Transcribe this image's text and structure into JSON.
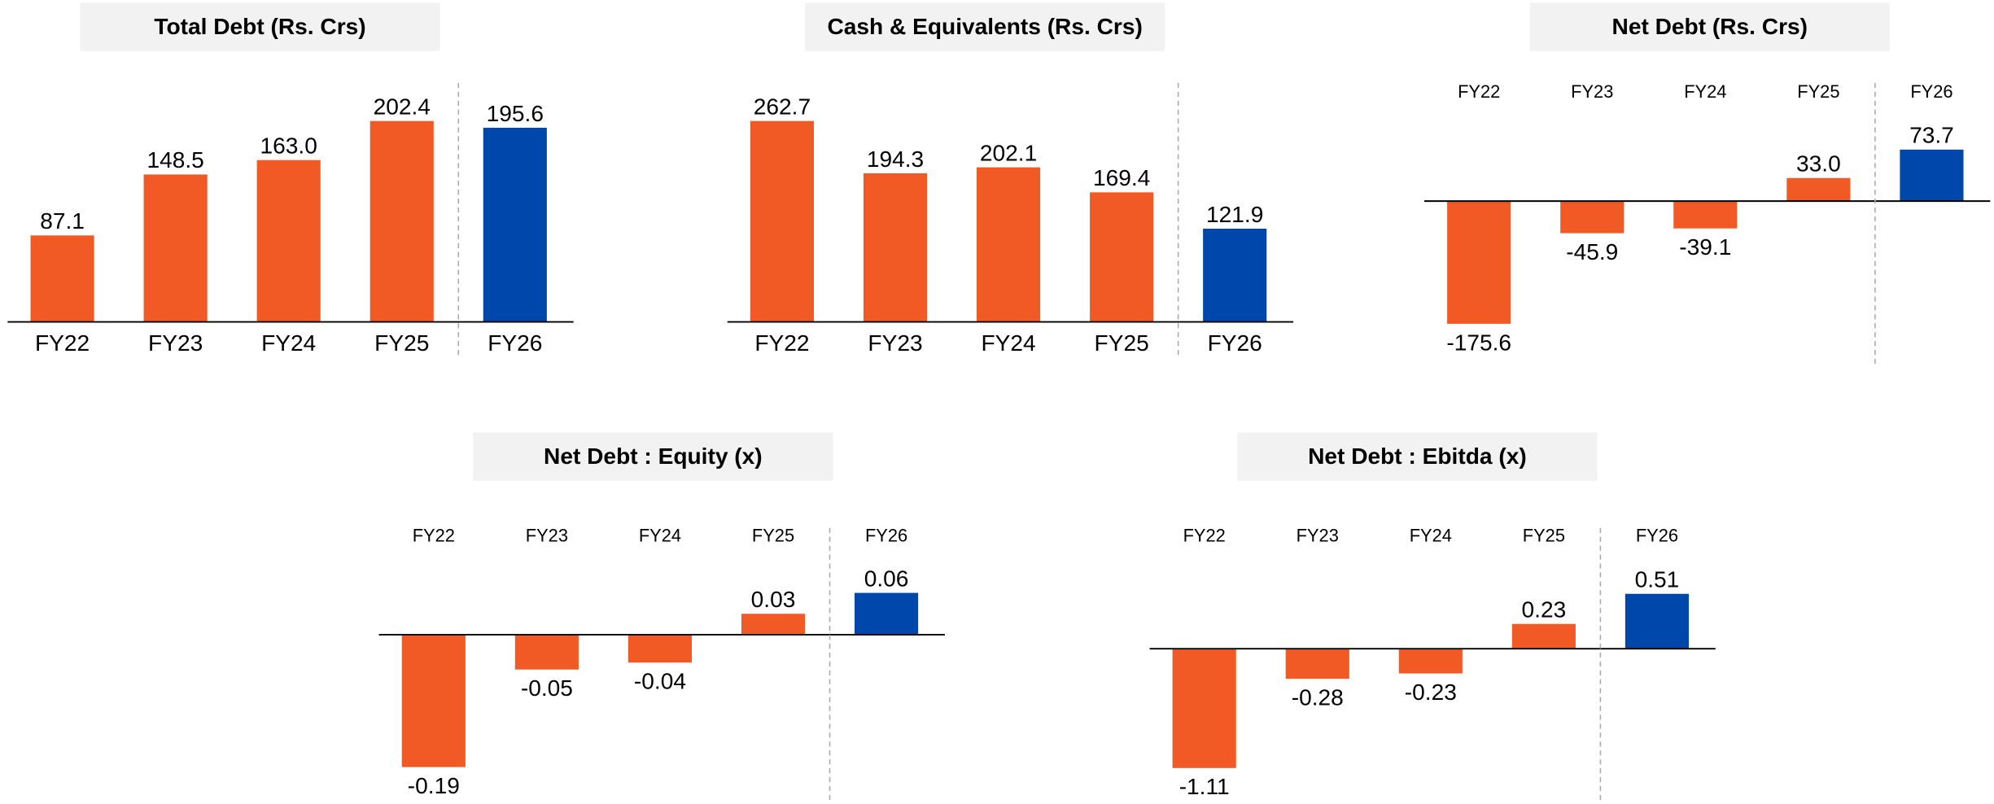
{
  "chart_data": [
    {
      "type": "bar",
      "title": "Total Debt (Rs. Crs)",
      "categories": [
        "FY22",
        "FY23",
        "FY24",
        "FY25",
        "FY26"
      ],
      "values": [
        87.1,
        148.5,
        163.0,
        202.4,
        195.6
      ],
      "value_labels": [
        "87.1",
        "148.5",
        "163.0",
        "202.4",
        "195.6"
      ],
      "colors": [
        "#f15a24",
        "#f15a24",
        "#f15a24",
        "#f15a24",
        "#0047ab"
      ]
    },
    {
      "type": "bar",
      "title": "Cash & Equivalents (Rs. Crs)",
      "categories": [
        "FY22",
        "FY23",
        "FY24",
        "FY25",
        "FY26"
      ],
      "values": [
        262.7,
        194.3,
        202.1,
        169.4,
        121.9
      ],
      "value_labels": [
        "262.7",
        "194.3",
        "202.1",
        "169.4",
        "121.9"
      ],
      "colors": [
        "#f15a24",
        "#f15a24",
        "#f15a24",
        "#f15a24",
        "#0047ab"
      ]
    },
    {
      "type": "bar",
      "title": "Net Debt (Rs. Crs)",
      "categories": [
        "FY22",
        "FY23",
        "FY24",
        "FY25",
        "FY26"
      ],
      "values": [
        -175.6,
        -45.9,
        -39.1,
        33.0,
        73.7
      ],
      "value_labels": [
        "-175.6",
        "-45.9",
        "-39.1",
        "33.0",
        "73.7"
      ],
      "colors": [
        "#f15a24",
        "#f15a24",
        "#f15a24",
        "#f15a24",
        "#0047ab"
      ]
    },
    {
      "type": "bar",
      "title": "Net Debt : Equity (x)",
      "categories": [
        "FY22",
        "FY23",
        "FY24",
        "FY25",
        "FY26"
      ],
      "values": [
        -0.19,
        -0.05,
        -0.04,
        0.03,
        0.06
      ],
      "value_labels": [
        "-0.19",
        "-0.05",
        "-0.04",
        "0.03",
        "0.06"
      ],
      "colors": [
        "#f15a24",
        "#f15a24",
        "#f15a24",
        "#f15a24",
        "#0047ab"
      ]
    },
    {
      "type": "bar",
      "title": "Net Debt : Ebitda (x)",
      "categories": [
        "FY22",
        "FY23",
        "FY24",
        "FY25",
        "FY26"
      ],
      "values": [
        -1.11,
        -0.28,
        -0.23,
        0.23,
        0.51
      ],
      "value_labels": [
        "-1.11",
        "-0.28",
        "-0.23",
        "0.23",
        "0.51"
      ],
      "colors": [
        "#f15a24",
        "#f15a24",
        "#f15a24",
        "#f15a24",
        "#0047ab"
      ]
    }
  ]
}
